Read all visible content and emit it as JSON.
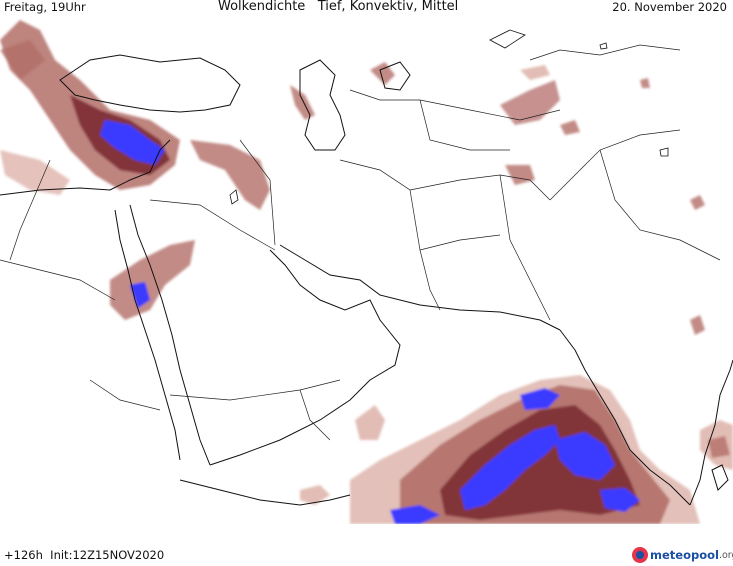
{
  "header": {
    "left": "Freitag, 19Uhr",
    "center": "Wolkendichte   Tief, Konvektiv, Mittel",
    "right": "20. November 2020"
  },
  "footer": {
    "left": "+126h  Init:12Z15NOV2020",
    "brand": "meteopool",
    "brand_tld": ".org"
  },
  "colors": {
    "cloud_light": "#e2bdb5",
    "cloud_medium": "#b36e68",
    "cloud_dark": "#7c2e33",
    "convective": "#3b3bff",
    "coastline": "#111111",
    "border": "#222222"
  },
  "icons": {
    "logo": "meteopool-logo-icon"
  }
}
